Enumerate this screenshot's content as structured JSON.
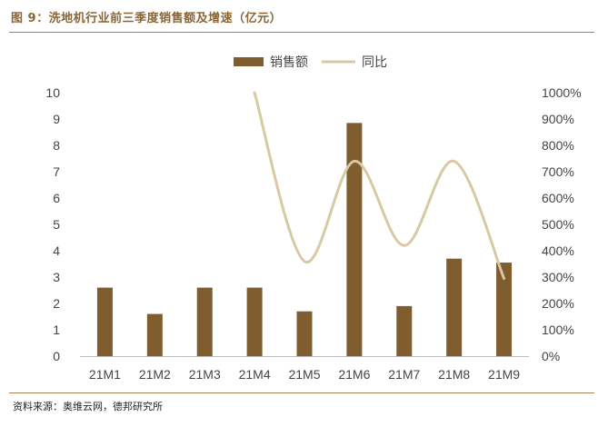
{
  "figure": {
    "title": "图 9：洗地机行业前三季度销售额及增速（亿元）",
    "source": "资料来源：奥维云网，德邦研究所"
  },
  "colors": {
    "bar": "#7F5D2E",
    "line": "#D8C9A3",
    "rule": "#a0815a",
    "title": "#8B6535"
  },
  "chart_data": {
    "type": "bar",
    "categories": [
      "21M1",
      "21M2",
      "21M3",
      "21M4",
      "21M5",
      "21M6",
      "21M7",
      "21M8",
      "21M9"
    ],
    "series": [
      {
        "name": "销售额",
        "type": "bar",
        "axis": "left",
        "values": [
          2.6,
          1.6,
          2.6,
          2.6,
          1.7,
          8.85,
          1.9,
          3.7,
          3.55
        ]
      },
      {
        "name": "同比",
        "type": "line",
        "axis": "right",
        "values": [
          null,
          null,
          null,
          1000,
          360,
          740,
          420,
          740,
          295
        ]
      }
    ],
    "yticks_left": [
      "0",
      "1",
      "2",
      "3",
      "4",
      "5",
      "6",
      "7",
      "8",
      "9",
      "10"
    ],
    "yticks_right": [
      "0%",
      "100%",
      "200%",
      "300%",
      "400%",
      "500%",
      "600%",
      "700%",
      "800%",
      "900%",
      "1000%"
    ],
    "ylim_left": [
      0,
      10
    ],
    "ylim_right": [
      0,
      1000
    ],
    "legend_position": "top-center",
    "grid": false
  }
}
